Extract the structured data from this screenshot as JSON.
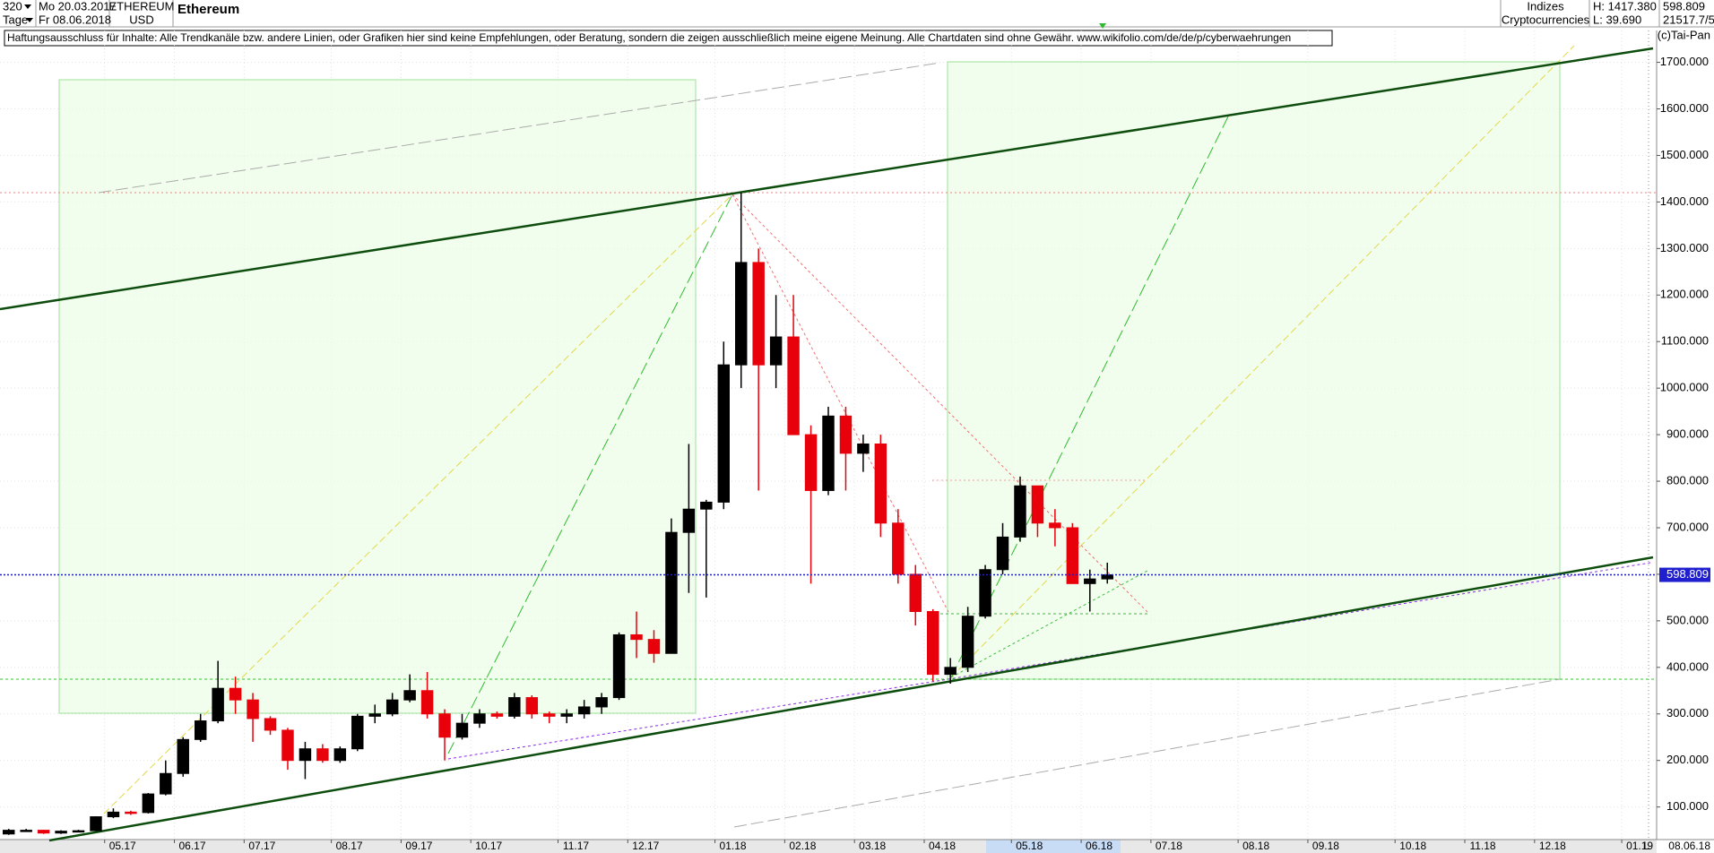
{
  "header": {
    "period": "320",
    "start_date": "Mo 20.03.2017",
    "interval": "Tage",
    "end_date": "Fr 08.06.2018",
    "symbol": "ETHEREUM",
    "currency": "USD",
    "name": "Ethereum",
    "group": "Indizes",
    "subgroup": "Cryptocurrencies",
    "high": "H: 1417.380",
    "low": "L: 39.690",
    "volume": "21517.7/5"
  },
  "disclaimer": "Haftungsausschluss für Inhalte: Alle Trendkanäle bzw. andere Linien, oder Grafiken hier sind keine Empfehlungen, oder Beratung, sondern die zeigen ausschließlich meine eigene Meinung. Alle Chartdaten sind ohne Gewähr.  www.wikifolio.com/de/de/p/cyberwaehrungen",
  "copyright": "(c)Tai-Pan",
  "footer": {
    "date": "08.06.18",
    "mode": "L"
  },
  "chart_data": {
    "type": "candlestick",
    "categories": [
      null,
      null,
      null,
      null,
      null,
      null,
      "05.17",
      null,
      null,
      null,
      "06.17",
      null,
      null,
      null,
      "07.17",
      null,
      null,
      null,
      null,
      "08.17",
      null,
      null,
      null,
      "09.17",
      null,
      null,
      null,
      "10.17",
      null,
      null,
      null,
      null,
      "11.17",
      null,
      null,
      null,
      "12.17",
      null,
      null,
      null,
      null,
      "01.18",
      null,
      null,
      null,
      "02.18",
      null,
      null,
      null,
      "03.18",
      null,
      null,
      null,
      "04.18",
      null,
      null,
      null,
      null,
      "05.18",
      null,
      null,
      null,
      "06.18",
      null,
      null,
      null,
      "07.18",
      null,
      null,
      null,
      null,
      "08.18",
      null,
      null,
      null,
      "09.18",
      null,
      null,
      null,
      null,
      "10.18",
      null,
      null,
      null,
      "11.18",
      null,
      null,
      null,
      "12.18",
      null,
      null,
      null,
      null,
      "01.19",
      null
    ],
    "open": [
      42,
      50,
      50,
      44,
      48,
      49,
      79,
      89,
      88,
      128,
      172,
      245,
      285,
      355,
      330,
      290,
      265,
      200,
      225,
      200,
      225,
      295,
      300,
      330,
      350,
      300,
      250,
      280,
      300,
      295,
      335,
      300,
      295,
      300,
      315,
      335,
      470,
      460,
      430,
      690,
      740,
      755,
      1050,
      1270,
      1050,
      1110,
      900,
      780,
      940,
      860,
      880,
      710,
      600,
      520,
      385,
      400,
      510,
      610,
      680,
      790,
      710,
      700,
      580,
      590,
      null,
      null,
      null,
      null,
      null,
      null,
      null,
      null,
      null,
      null,
      null,
      null,
      null,
      null,
      null,
      null,
      null,
      null,
      null,
      null,
      null,
      null,
      null,
      null,
      null,
      null,
      null,
      null,
      null,
      null,
      null
    ],
    "high": [
      53,
      53,
      51,
      50,
      51,
      80,
      97,
      92,
      130,
      200,
      250,
      300,
      414,
      380,
      345,
      295,
      270,
      240,
      235,
      230,
      300,
      320,
      345,
      385,
      390,
      310,
      300,
      310,
      305,
      345,
      340,
      305,
      310,
      330,
      345,
      475,
      520,
      480,
      720,
      880,
      760,
      1100,
      1420,
      1300,
      1200,
      1200,
      920,
      960,
      960,
      900,
      900,
      740,
      620,
      525,
      420,
      530,
      620,
      710,
      810,
      790,
      740,
      710,
      610,
      625,
      null,
      null,
      null,
      null,
      null,
      null,
      null,
      null,
      null,
      null,
      null,
      null,
      null,
      null,
      null,
      null,
      null,
      null,
      null,
      null,
      null,
      null,
      null,
      null,
      null,
      null,
      null,
      null,
      null,
      null,
      null
    ],
    "low": [
      40,
      47,
      42,
      42,
      46,
      48,
      76,
      83,
      86,
      125,
      165,
      240,
      280,
      300,
      240,
      255,
      180,
      160,
      195,
      195,
      220,
      280,
      295,
      325,
      290,
      200,
      245,
      270,
      290,
      290,
      290,
      280,
      280,
      290,
      300,
      330,
      420,
      410,
      430,
      560,
      550,
      740,
      1000,
      780,
      1000,
      900,
      580,
      770,
      780,
      820,
      680,
      580,
      490,
      370,
      365,
      390,
      505,
      600,
      670,
      680,
      660,
      580,
      520,
      580,
      null,
      null,
      null,
      null,
      null,
      null,
      null,
      null,
      null,
      null,
      null,
      null,
      null,
      null,
      null,
      null,
      null,
      null,
      null,
      null,
      null,
      null,
      null,
      null,
      null,
      null,
      null,
      null,
      null,
      null,
      null
    ],
    "close": [
      50,
      50,
      44,
      48,
      49,
      79,
      89,
      88,
      128,
      172,
      245,
      285,
      355,
      330,
      290,
      265,
      200,
      225,
      200,
      225,
      295,
      300,
      330,
      350,
      300,
      250,
      280,
      300,
      295,
      335,
      300,
      295,
      300,
      315,
      335,
      470,
      460,
      430,
      690,
      740,
      755,
      1050,
      1270,
      1050,
      1110,
      900,
      780,
      940,
      860,
      880,
      710,
      600,
      520,
      385,
      400,
      510,
      610,
      680,
      790,
      710,
      700,
      580,
      590,
      598.809,
      null,
      null,
      null,
      null,
      null,
      null,
      null,
      null,
      null,
      null,
      null,
      null,
      null,
      null,
      null,
      null,
      null,
      null,
      null,
      null,
      null,
      null,
      null,
      null,
      null,
      null,
      null,
      null,
      null,
      null,
      null
    ],
    "up_color": "#000000",
    "down_color": "#e8000b",
    "last_price": 598.809,
    "last_color": "#1f1fcf",
    "ylim": [
      30,
      1730
    ],
    "yticks": [
      {
        "value": 100,
        "label": "100.000"
      },
      {
        "value": 200,
        "label": "200.000"
      },
      {
        "value": 300,
        "label": "300.000"
      },
      {
        "value": 400,
        "label": "400.000"
      },
      {
        "value": 500,
        "label": "500.000"
      },
      {
        "value": 600,
        "label": "600.000"
      },
      {
        "value": 700,
        "label": "700.000"
      },
      {
        "value": 800,
        "label": "800.000"
      },
      {
        "value": 900,
        "label": "900.000"
      },
      {
        "value": 1000,
        "label": "1000.000"
      },
      {
        "value": 1100,
        "label": "1100.000"
      },
      {
        "value": 1200,
        "label": "1200.000"
      },
      {
        "value": 1300,
        "label": "1300.000"
      },
      {
        "value": 1400,
        "label": "1400.000"
      },
      {
        "value": 1500,
        "label": "1500.000"
      },
      {
        "value": 1600,
        "label": "1600.000"
      },
      {
        "value": 1700,
        "label": "1700.000"
      }
    ],
    "grid": true
  }
}
